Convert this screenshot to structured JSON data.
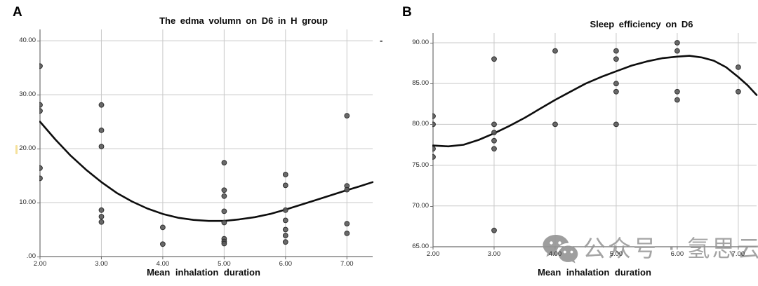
{
  "chart_data": [
    {
      "type": "scatter",
      "panel_label": "A",
      "title": "The edma volumn on D6 in H group",
      "xlabel": "Mean inhalation duration",
      "ylabel": "",
      "xlim": [
        2,
        7.42
      ],
      "ylim": [
        0,
        42.1
      ],
      "grid": true,
      "legend": "none",
      "xticks": [
        {
          "v": 2,
          "label": "2.00"
        },
        {
          "v": 3,
          "label": "3.00"
        },
        {
          "v": 4,
          "label": "4.00"
        },
        {
          "v": 5,
          "label": "5.00"
        },
        {
          "v": 6,
          "label": "6.00"
        },
        {
          "v": 7,
          "label": "7.00"
        }
      ],
      "yticks": [
        {
          "v": 0,
          "label": ".00"
        },
        {
          "v": 10,
          "label": "10.00"
        },
        {
          "v": 20,
          "label": "20.00"
        },
        {
          "v": 30,
          "label": "30.00"
        },
        {
          "v": 40,
          "label": "40.00"
        }
      ],
      "points": [
        [
          2,
          35.3
        ],
        [
          2,
          28.1
        ],
        [
          2,
          27.0
        ],
        [
          2,
          16.4
        ],
        [
          2,
          14.5
        ],
        [
          3,
          28.1
        ],
        [
          3,
          23.4
        ],
        [
          3,
          20.4
        ],
        [
          3,
          8.6
        ],
        [
          3,
          7.4
        ],
        [
          3,
          6.4
        ],
        [
          4,
          5.4
        ],
        [
          4,
          2.3
        ],
        [
          5,
          17.4
        ],
        [
          5,
          12.3
        ],
        [
          5,
          11.2
        ],
        [
          5,
          8.4
        ],
        [
          5,
          6.3
        ],
        [
          5,
          3.3
        ],
        [
          5,
          2.8
        ],
        [
          5,
          2.4
        ],
        [
          6,
          15.2
        ],
        [
          6,
          13.2
        ],
        [
          6,
          8.6
        ],
        [
          6,
          6.7
        ],
        [
          6,
          5.0
        ],
        [
          6,
          3.9
        ],
        [
          6,
          2.7
        ],
        [
          7,
          26.1
        ],
        [
          7,
          13.1
        ],
        [
          7,
          12.4
        ],
        [
          7,
          6.1
        ],
        [
          7,
          4.3
        ]
      ],
      "trend": [
        [
          2,
          25.0
        ],
        [
          2.25,
          21.7
        ],
        [
          2.5,
          18.7
        ],
        [
          2.75,
          16.1
        ],
        [
          3,
          13.8
        ],
        [
          3.25,
          11.8
        ],
        [
          3.5,
          10.2
        ],
        [
          3.75,
          8.9
        ],
        [
          4,
          7.9
        ],
        [
          4.25,
          7.2
        ],
        [
          4.5,
          6.8
        ],
        [
          4.75,
          6.6
        ],
        [
          5,
          6.6
        ],
        [
          5.25,
          6.9
        ],
        [
          5.5,
          7.3
        ],
        [
          5.75,
          7.9
        ],
        [
          6,
          8.7
        ],
        [
          6.25,
          9.6
        ],
        [
          6.5,
          10.5
        ],
        [
          6.75,
          11.4
        ],
        [
          7,
          12.3
        ],
        [
          7.2,
          13.0
        ],
        [
          7.42,
          13.8
        ]
      ]
    },
    {
      "type": "scatter",
      "panel_label": "B",
      "title": "Sleep efficiency on D6",
      "xlabel": "Mean inhalation duration",
      "ylabel": "",
      "xlim": [
        2,
        7.3
      ],
      "ylim": [
        65,
        91.2
      ],
      "grid": true,
      "legend": "none",
      "xticks": [
        {
          "v": 2,
          "label": "2.00"
        },
        {
          "v": 3,
          "label": "3.00"
        },
        {
          "v": 4,
          "label": "4.00"
        },
        {
          "v": 5,
          "label": "5.00"
        },
        {
          "v": 6,
          "label": "6.00"
        },
        {
          "v": 7,
          "label": "7.00"
        }
      ],
      "yticks": [
        {
          "v": 65,
          "label": "65.00"
        },
        {
          "v": 70,
          "label": "70.00"
        },
        {
          "v": 75,
          "label": "75.00"
        },
        {
          "v": 80,
          "label": "80.00"
        },
        {
          "v": 85,
          "label": "85.00"
        },
        {
          "v": 90,
          "label": "90.00"
        }
      ],
      "points": [
        [
          2,
          81
        ],
        [
          2,
          80
        ],
        [
          2,
          77
        ],
        [
          2,
          76
        ],
        [
          3,
          88
        ],
        [
          3,
          80
        ],
        [
          3,
          79
        ],
        [
          3,
          78
        ],
        [
          3,
          77
        ],
        [
          3,
          67
        ],
        [
          4,
          89
        ],
        [
          4,
          80
        ],
        [
          5,
          89
        ],
        [
          5,
          88
        ],
        [
          5,
          85
        ],
        [
          5,
          84
        ],
        [
          5,
          80
        ],
        [
          6,
          90
        ],
        [
          6,
          89
        ],
        [
          6,
          84
        ],
        [
          6,
          83
        ],
        [
          7,
          87
        ],
        [
          7,
          84
        ]
      ],
      "trend": [
        [
          2,
          77.4
        ],
        [
          2.25,
          77.3
        ],
        [
          2.5,
          77.5
        ],
        [
          2.75,
          78.1
        ],
        [
          3,
          78.9
        ],
        [
          3.25,
          79.8
        ],
        [
          3.5,
          80.8
        ],
        [
          3.75,
          81.9
        ],
        [
          4,
          83.0
        ],
        [
          4.25,
          84.0
        ],
        [
          4.5,
          85.0
        ],
        [
          4.75,
          85.8
        ],
        [
          5,
          86.5
        ],
        [
          5.25,
          87.2
        ],
        [
          5.5,
          87.7
        ],
        [
          5.75,
          88.1
        ],
        [
          6,
          88.3
        ],
        [
          6.2,
          88.4
        ],
        [
          6.4,
          88.2
        ],
        [
          6.6,
          87.8
        ],
        [
          6.8,
          87.0
        ],
        [
          7,
          85.8
        ],
        [
          7.15,
          84.8
        ],
        [
          7.3,
          83.6
        ]
      ]
    }
  ],
  "style": {
    "point_fill": "#5b5b5b",
    "point_stroke": "#2f2f2f",
    "grid_color": "#c9c9c9",
    "axis_color": "#6e6e6e",
    "curve_color": "#0d0d0d"
  },
  "watermark": {
    "text": "公众号 · 氢思云",
    "icon": "wechat-chat-bubbles"
  },
  "annotations": {
    "stray_mark": "-"
  }
}
